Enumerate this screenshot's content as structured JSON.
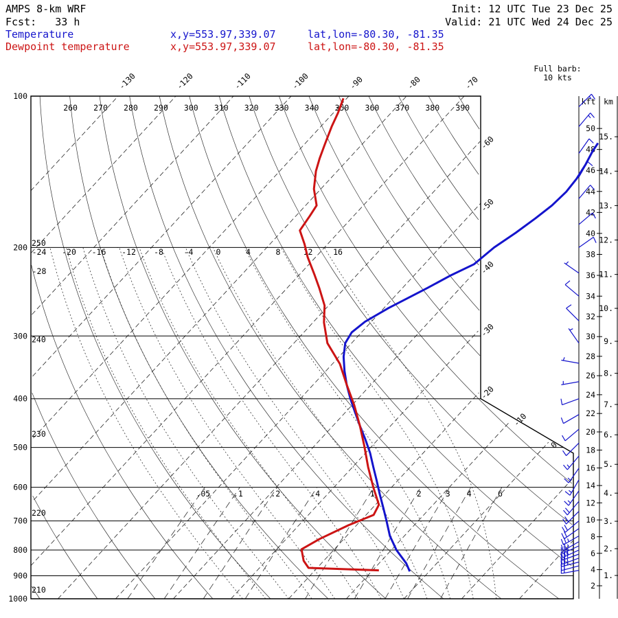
{
  "header": {
    "model": "AMPS 8-km WRF",
    "fcst": "Fcst:   33 h",
    "init": "Init: 12 UTC Tue 23 Dec 25",
    "valid": "Valid: 21 UTC Wed 24 Dec 25",
    "temp_label": "Temperature",
    "temp_xy": "x,y=553.97,339.07",
    "temp_latlon": "lat,lon=-80.30, -81.35",
    "dewp_label": "Dewpoint temperature",
    "dewp_xy": "x,y=553.97,339.07",
    "dewp_latlon": "lat,lon=-80.30, -81.35",
    "barb_note_1": "Full barb:",
    "barb_note_2": "10 kts",
    "kft_header": "kft",
    "km_header": "km"
  },
  "colors": {
    "temperature": "#1414cc",
    "dewpoint": "#cc1414",
    "barb": "#1414cc",
    "grid": "#000000"
  },
  "chart_data": {
    "type": "skewt-logp",
    "title": "AMPS 8-km WRF sounding",
    "pressure_ticks": [
      100,
      200,
      300,
      400,
      500,
      600,
      700,
      800,
      900,
      1000
    ],
    "isotherm_labels_top": [
      -130,
      -120,
      -110,
      -100,
      -90,
      -80,
      -70
    ],
    "isotherm_labels_right": [
      -60,
      -50,
      -40,
      -30,
      -20,
      -10,
      0
    ],
    "dry_adiabat_labels_top": [
      260,
      270,
      280,
      290,
      300,
      310,
      320,
      330,
      340,
      350,
      360,
      370,
      380,
      390
    ],
    "dry_adiabat_labels_left": [
      {
        "label": "250",
        "p": 196
      },
      {
        "label": "240",
        "p": 305
      },
      {
        "label": "230",
        "p": 470
      },
      {
        "label": "220",
        "p": 675
      },
      {
        "label": "210",
        "p": 960
      }
    ],
    "moist_adiabat_labels": [
      -28,
      -24,
      -20,
      -16,
      -12,
      -8,
      -4,
      0,
      4,
      8,
      12,
      16
    ],
    "mixing_ratio_values": [
      0.05,
      0.1,
      0.2,
      0.4,
      1,
      2,
      3,
      4,
      6
    ],
    "km_tick_labels": [
      "1.",
      "2.",
      "3.",
      "4.",
      "5.",
      "6.",
      "7.",
      "8.",
      "9.",
      "10.",
      "11.",
      "12.",
      "13.",
      "14.",
      "15."
    ],
    "kft_ticks": [
      2,
      4,
      6,
      8,
      10,
      12,
      14,
      16,
      18,
      20,
      22,
      24,
      26,
      28,
      30,
      32,
      34,
      36,
      38,
      40,
      42,
      44,
      46,
      48,
      50
    ],
    "temperature_profile": [
      [
        882,
        -3.4
      ],
      [
        850,
        -5.3
      ],
      [
        800,
        -9.1
      ],
      [
        750,
        -12.5
      ],
      [
        700,
        -15.5
      ],
      [
        660,
        -18.1
      ],
      [
        620,
        -20.9
      ],
      [
        580,
        -23.8
      ],
      [
        547,
        -26.4
      ],
      [
        513,
        -29.2
      ],
      [
        482,
        -32.2
      ],
      [
        453,
        -35.3
      ],
      [
        425,
        -38.4
      ],
      [
        400,
        -41.3
      ],
      [
        375,
        -44.2
      ],
      [
        352,
        -46.8
      ],
      [
        330,
        -49.2
      ],
      [
        310,
        -51.1
      ],
      [
        295,
        -51.7
      ],
      [
        281,
        -51.1
      ],
      [
        264,
        -49.2
      ],
      [
        241,
        -45.7
      ],
      [
        227,
        -43.6
      ],
      [
        216,
        -41.4
      ],
      [
        200,
        -40.6
      ],
      [
        187,
        -39.2
      ],
      [
        175,
        -38.1
      ],
      [
        165,
        -37.3
      ],
      [
        155,
        -37.0
      ],
      [
        146,
        -37.3
      ],
      [
        137,
        -38.0
      ],
      [
        129,
        -38.9
      ],
      [
        124,
        -39.3
      ]
    ],
    "dewpoint_profile": [
      [
        878,
        -8.9
      ],
      [
        868,
        -21.5
      ],
      [
        840,
        -23.5
      ],
      [
        797,
        -25.7
      ],
      [
        760,
        -24.2
      ],
      [
        714,
        -21.4
      ],
      [
        681,
        -18.7
      ],
      [
        650,
        -19.4
      ],
      [
        601,
        -23.1
      ],
      [
        547,
        -27.3
      ],
      [
        497,
        -31.3
      ],
      [
        453,
        -35.3
      ],
      [
        412,
        -39.6
      ],
      [
        375,
        -44.2
      ],
      [
        341,
        -48.7
      ],
      [
        310,
        -54.2
      ],
      [
        282,
        -58.1
      ],
      [
        261,
        -60.7
      ],
      [
        241,
        -64.4
      ],
      [
        227,
        -67.3
      ],
      [
        209,
        -71.4
      ],
      [
        197,
        -74.0
      ],
      [
        185,
        -77.0
      ],
      [
        173,
        -77.6
      ],
      [
        165,
        -78.1
      ],
      [
        153,
        -81.2
      ],
      [
        141,
        -83.7
      ],
      [
        133,
        -85.1
      ],
      [
        125,
        -86.4
      ],
      [
        115,
        -88.1
      ],
      [
        108,
        -89.2
      ],
      [
        101,
        -90.6
      ]
    ],
    "wind_barbs": [
      [
        105,
        45,
        15
      ],
      [
        115,
        40,
        15
      ],
      [
        130,
        35,
        10
      ],
      [
        145,
        30,
        10
      ],
      [
        160,
        40,
        10
      ],
      [
        180,
        50,
        10
      ],
      [
        200,
        55,
        10
      ],
      [
        225,
        305,
        5
      ],
      [
        250,
        310,
        10
      ],
      [
        280,
        315,
        10
      ],
      [
        310,
        325,
        5
      ],
      [
        340,
        280,
        5
      ],
      [
        370,
        260,
        5
      ],
      [
        400,
        250,
        10
      ],
      [
        430,
        240,
        10
      ],
      [
        460,
        230,
        10
      ],
      [
        490,
        225,
        10
      ],
      [
        520,
        220,
        15
      ],
      [
        550,
        215,
        15
      ],
      [
        580,
        210,
        15
      ],
      [
        610,
        215,
        15
      ],
      [
        640,
        220,
        20
      ],
      [
        670,
        225,
        20
      ],
      [
        700,
        230,
        20
      ],
      [
        725,
        235,
        20
      ],
      [
        750,
        240,
        25
      ],
      [
        770,
        240,
        25
      ],
      [
        785,
        245,
        25
      ],
      [
        800,
        245,
        30
      ],
      [
        815,
        250,
        30
      ],
      [
        830,
        250,
        25
      ],
      [
        845,
        255,
        25
      ],
      [
        860,
        255,
        20
      ],
      [
        878,
        260,
        20
      ]
    ]
  }
}
